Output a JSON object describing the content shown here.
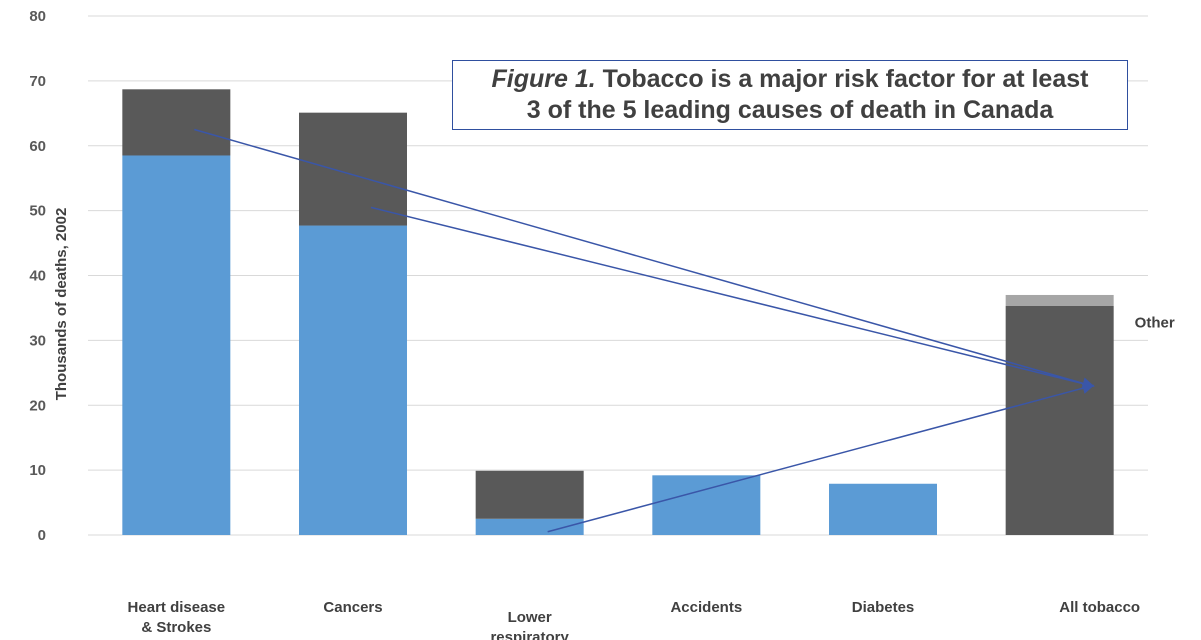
{
  "chart_data": {
    "type": "bar",
    "stacked": true,
    "title_prefix": "Figure 1.",
    "title_line1": "Tobacco is a major risk factor for at least",
    "title_line2": "3 of the 5 leading causes of death in Canada",
    "ylabel": "Thousands of deaths, 2002",
    "ylim": [
      0,
      80
    ],
    "yticks": [
      0,
      10,
      20,
      30,
      40,
      50,
      60,
      70,
      80
    ],
    "grid": true,
    "categories": [
      [
        "Heart disease",
        "& Strokes"
      ],
      [
        "Cancers"
      ],
      [
        "Lower",
        "respiratory"
      ],
      [
        "Accidents"
      ],
      [
        "Diabetes"
      ],
      [
        "All tobacco"
      ]
    ],
    "series": [
      {
        "values": [
          58.5,
          47.7,
          2.5,
          9.2,
          7.9,
          0
        ],
        "color": "#5b9bd5"
      },
      {
        "values": [
          10.2,
          17.4,
          7.4,
          0,
          0,
          35.3
        ],
        "color": "#595959"
      },
      {
        "values": [
          0,
          0,
          0,
          0,
          0,
          1.7
        ],
        "color": "#a6a6a6"
      }
    ],
    "annotations": [
      {
        "text": "Other",
        "category": 5,
        "y": 32
      }
    ],
    "arrows": [
      {
        "from": [
          0,
          62.5
        ],
        "to": [
          5,
          23
        ]
      },
      {
        "from": [
          1,
          50.5
        ],
        "to": [
          5,
          23
        ]
      },
      {
        "from": [
          2,
          0.5
        ],
        "to": [
          5,
          23
        ]
      }
    ],
    "arrow_color": "#3a56a8"
  }
}
